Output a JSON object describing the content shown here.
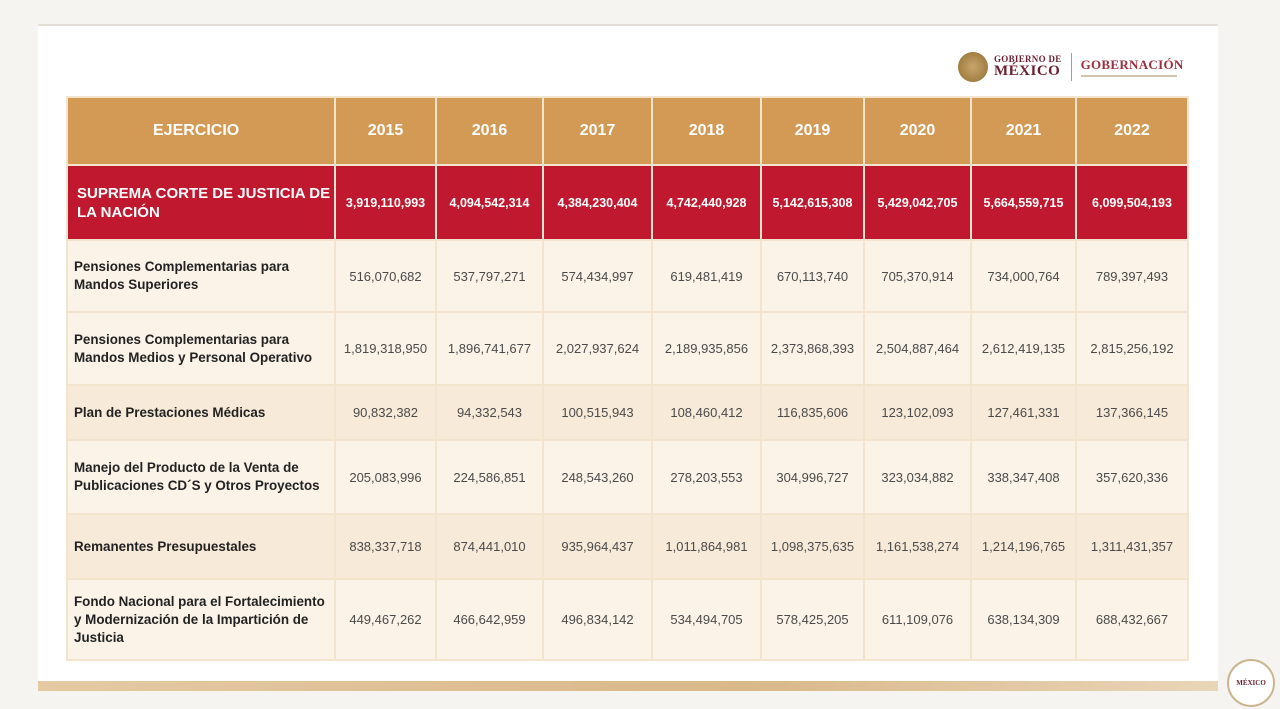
{
  "logos": {
    "gobierno_line1": "GOBIERNO DE",
    "gobierno_line2": "MÉXICO",
    "gobernacion": "GOBERNACIÓN"
  },
  "table": {
    "header": [
      "EJERCICIO",
      "2015",
      "2016",
      "2017",
      "2018",
      "2019",
      "2020",
      "2021",
      "2022"
    ],
    "total_row": {
      "label": "SUPREMA CORTE DE JUSTICIA DE LA NACIÓN",
      "values": [
        "3,919,110,993",
        "4,094,542,314",
        "4,384,230,404",
        "4,742,440,928",
        "5,142,615,308",
        "5,429,042,705",
        "5,664,559,715",
        "6,099,504,193"
      ]
    },
    "rows": [
      {
        "label": "Pensiones Complementarias para Mandos Superiores",
        "values": [
          "516,070,682",
          "537,797,271",
          "574,434,997",
          "619,481,419",
          "670,113,740",
          "705,370,914",
          "734,000,764",
          "789,397,493"
        ]
      },
      {
        "label": "Pensiones Complementarias para Mandos Medios y Personal Operativo",
        "values": [
          "1,819,318,950",
          "1,896,741,677",
          "2,027,937,624",
          "2,189,935,856",
          "2,373,868,393",
          "2,504,887,464",
          "2,612,419,135",
          "2,815,256,192"
        ]
      },
      {
        "label": "Plan de Prestaciones Médicas",
        "values": [
          "90,832,382",
          "94,332,543",
          "100,515,943",
          "108,460,412",
          "116,835,606",
          "123,102,093",
          "127,461,331",
          "137,366,145"
        ]
      },
      {
        "label": "Manejo del Producto de la Venta de Publicaciones CD´S y Otros Proyectos",
        "values": [
          "205,083,996",
          "224,586,851",
          "248,543,260",
          "278,203,553",
          "304,996,727",
          "323,034,882",
          "338,347,408",
          "357,620,336"
        ]
      },
      {
        "label": "Remanentes Presupuestales",
        "values": [
          "838,337,718",
          "874,441,010",
          "935,964,437",
          "1,011,864,981",
          "1,098,375,635",
          "1,161,538,274",
          "1,214,196,765",
          "1,311,431,357"
        ]
      },
      {
        "label": "Fondo Nacional para el Fortalecimiento y Modernización de la Impartición de Justicia",
        "values": [
          "449,467,262",
          "466,642,959",
          "496,834,142",
          "534,494,705",
          "578,425,205",
          "611,109,076",
          "638,134,309",
          "688,432,667"
        ]
      }
    ]
  },
  "badge": {
    "text": "MÉXICO"
  }
}
